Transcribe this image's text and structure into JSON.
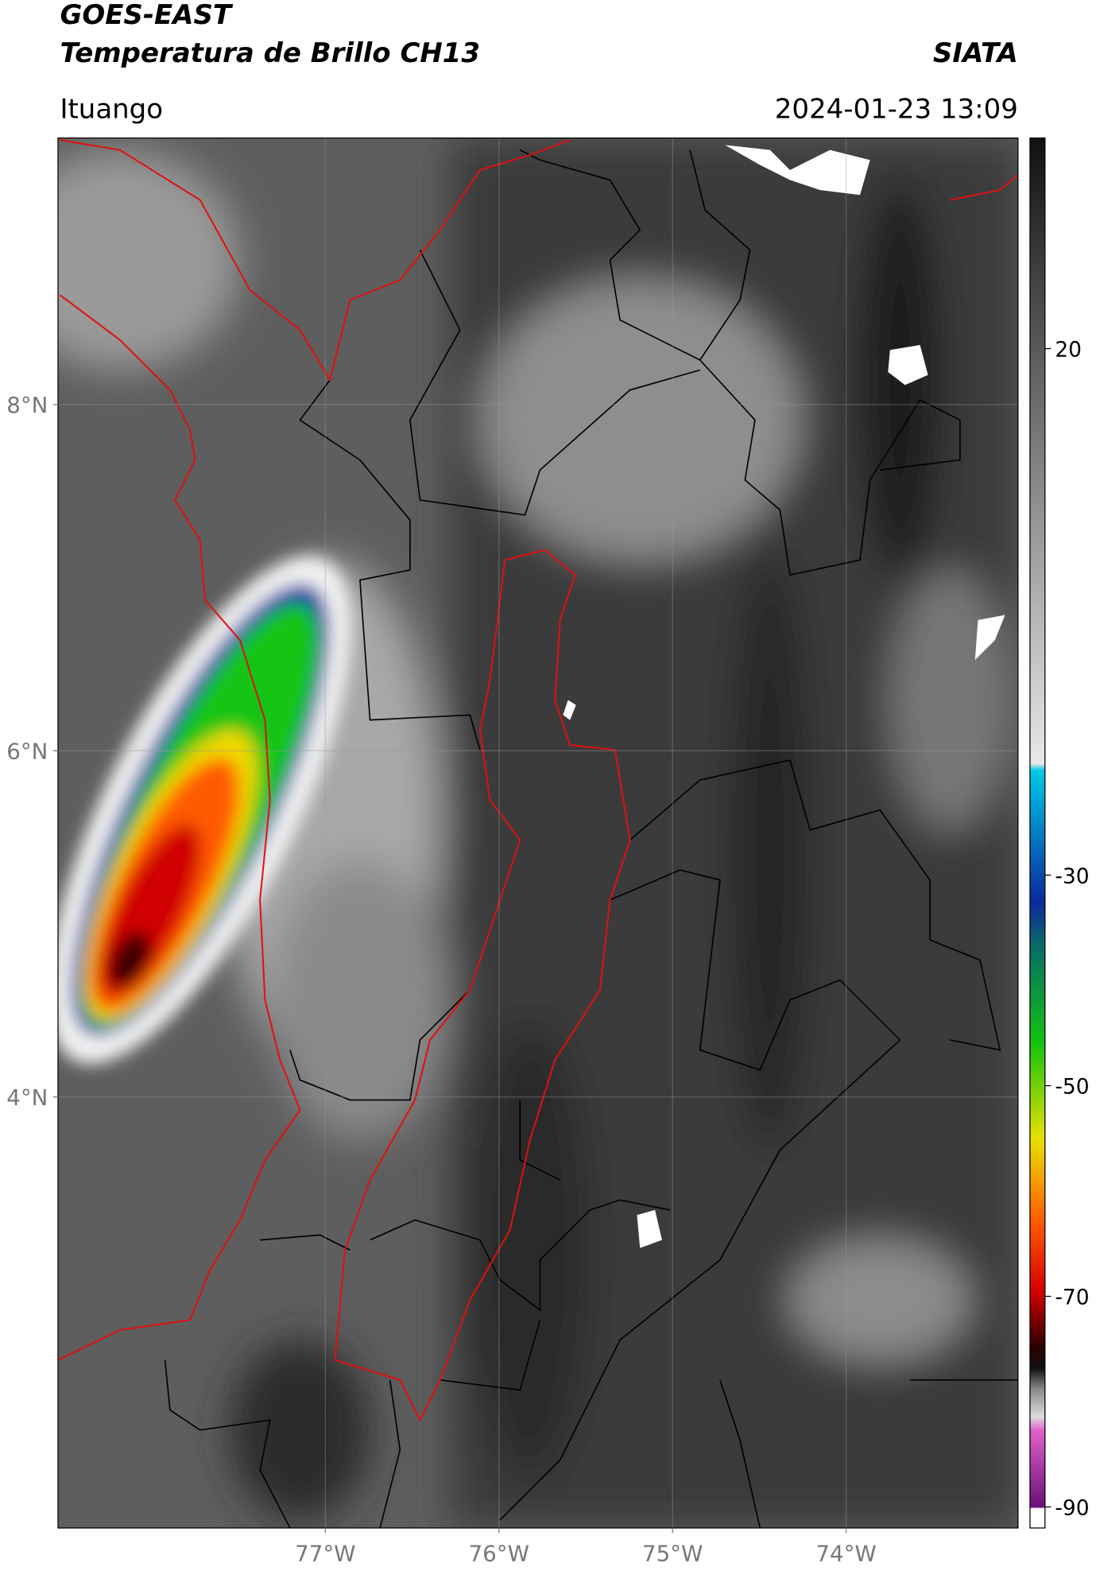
{
  "header": {
    "title": "GOES-EAST",
    "subtitle": "Temperatura de Brillo CH13",
    "source": "SIATA",
    "location": "Ituango",
    "datetime": "2024-01-23 13:09"
  },
  "map": {
    "xlim": [
      -78.54,
      -73.01
    ],
    "ylim": [
      1.51,
      9.54
    ],
    "xticks": [
      {
        "value": -77,
        "label": "77°W"
      },
      {
        "value": -76,
        "label": "76°W"
      },
      {
        "value": -75,
        "label": "75°W"
      },
      {
        "value": -74,
        "label": "74°W"
      }
    ],
    "yticks": [
      {
        "value": 4,
        "label": "4°N"
      },
      {
        "value": 6,
        "label": "6°N"
      },
      {
        "value": 8,
        "label": "8°N"
      }
    ],
    "grid": true
  },
  "colorbar": {
    "lim": [
      -92,
      40
    ],
    "ticks": [
      -90,
      -70,
      -50,
      -30,
      20
    ]
  }
}
